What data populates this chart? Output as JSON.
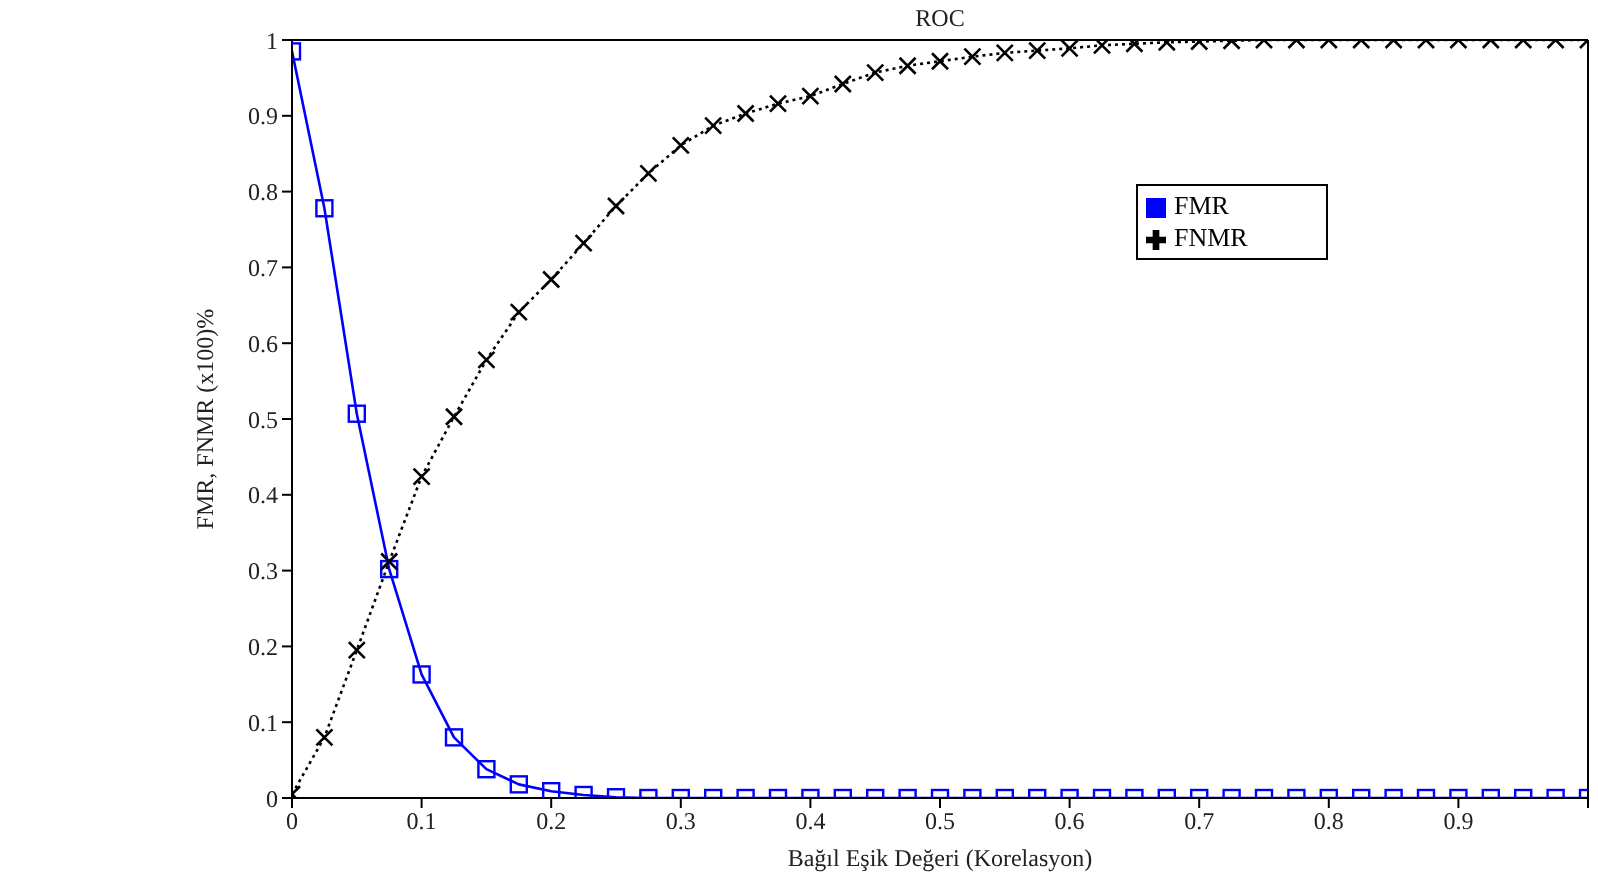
{
  "chart_data": {
    "type": "line",
    "title": "ROC",
    "xlabel": "Bağıl Eşik Değeri (Korelasyon)",
    "ylabel": "FMR, FNMR (x100)%",
    "x": [
      0,
      0.025,
      0.05,
      0.075,
      0.1,
      0.125,
      0.15,
      0.175,
      0.2,
      0.225,
      0.25,
      0.275,
      0.3,
      0.325,
      0.35,
      0.375,
      0.4,
      0.425,
      0.45,
      0.475,
      0.5,
      0.525,
      0.55,
      0.575,
      0.6,
      0.625,
      0.65,
      0.675,
      0.7,
      0.725,
      0.75,
      0.775,
      0.8,
      0.825,
      0.85,
      0.875,
      0.9,
      0.925,
      0.95,
      0.975,
      1
    ],
    "series": [
      {
        "name": "FMR",
        "color": "#0000ff",
        "marker": "square",
        "line_style": "solid",
        "values": [
          0.985,
          0.778,
          0.507,
          0.302,
          0.163,
          0.08,
          0.038,
          0.018,
          0.009,
          0.004,
          0.001,
          0,
          0,
          0,
          0,
          0,
          0,
          0,
          0,
          0,
          0,
          0,
          0,
          0,
          0,
          0,
          0,
          0,
          0,
          0,
          0,
          0,
          0,
          0,
          0,
          0,
          0,
          0,
          0,
          0,
          0
        ]
      },
      {
        "name": "FNMR",
        "color": "#000000",
        "marker": "cross",
        "line_style": "dotted",
        "values": [
          0.005,
          0.08,
          0.195,
          0.312,
          0.424,
          0.503,
          0.578,
          0.641,
          0.684,
          0.732,
          0.781,
          0.824,
          0.861,
          0.887,
          0.903,
          0.916,
          0.926,
          0.942,
          0.957,
          0.966,
          0.972,
          0.978,
          0.983,
          0.986,
          0.989,
          0.993,
          0.995,
          0.997,
          0.998,
          0.999,
          1,
          1,
          1,
          1,
          1,
          1,
          1,
          1,
          1,
          1,
          1
        ]
      }
    ],
    "xlim": [
      0,
      1
    ],
    "xticks": [
      0,
      0.1,
      0.2,
      0.3,
      0.4,
      0.5,
      0.6,
      0.7,
      0.8,
      0.9,
      {
        "value": 1,
        "label": null
      }
    ],
    "ylim": [
      0,
      1
    ],
    "yticks": [
      0,
      0.1,
      0.2,
      0.3,
      0.4,
      0.5,
      0.6,
      0.7,
      0.8,
      0.9,
      1
    ],
    "grid": false,
    "legend": "top right"
  }
}
